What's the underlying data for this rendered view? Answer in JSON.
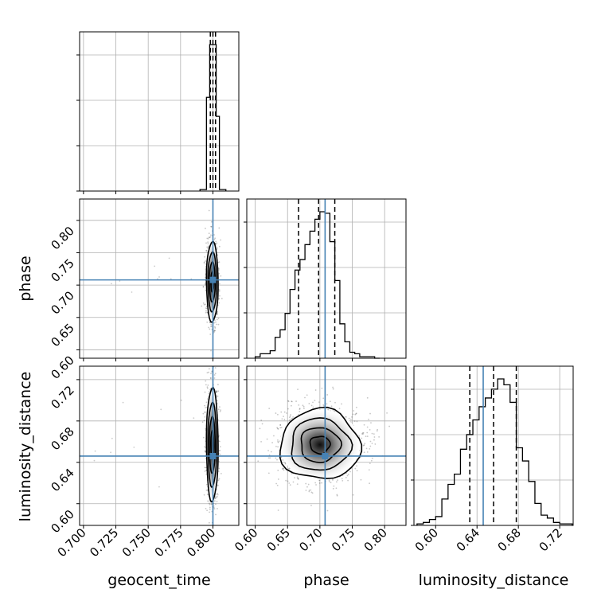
{
  "chart_data": {
    "type": "corner",
    "parameters": [
      "geocent_time",
      "phase",
      "luminosity_distance"
    ],
    "axis_labels": {
      "geocent_time": "geocent_time",
      "phase": "phase",
      "luminosity_distance": "luminosity_distance"
    },
    "truths": {
      "geocent_time": 0.8,
      "phase": 0.708,
      "luminosity_distance": 0.646
    },
    "ranges": {
      "geocent_time": [
        0.697,
        0.82
      ],
      "phase": [
        0.587,
        0.833
      ],
      "luminosity_distance": [
        0.579,
        0.733
      ]
    },
    "ticks": {
      "geocent_time": [
        0.7,
        0.725,
        0.75,
        0.775,
        0.8
      ],
      "phase": [
        0.6,
        0.65,
        0.7,
        0.75,
        0.8
      ],
      "luminosity_distance": [
        0.6,
        0.64,
        0.68,
        0.72
      ]
    },
    "tick_labels": {
      "geocent_time": [
        "0.700",
        "0.725",
        "0.750",
        "0.775",
        "0.800"
      ],
      "phase": [
        "0.60",
        "0.65",
        "0.70",
        "0.75",
        "0.80"
      ],
      "luminosity_distance": [
        "0.60",
        "0.64",
        "0.68",
        "0.72"
      ]
    },
    "quantiles": {
      "geocent_time": [
        0.798,
        0.8,
        0.802
      ],
      "phase": [
        0.667,
        0.698,
        0.723
      ],
      "luminosity_distance": [
        0.633,
        0.656,
        0.678
      ]
    },
    "histograms": {
      "geocent_time": {
        "edges": [
          0.79,
          0.795,
          0.7975,
          0.8,
          0.8025,
          0.805,
          0.81
        ],
        "counts": [
          1,
          64,
          100,
          100,
          51,
          1
        ]
      },
      "phase": {
        "edges": [
          0.6,
          0.6077,
          0.6154,
          0.6231,
          0.6308,
          0.6385,
          0.6462,
          0.6538,
          0.6615,
          0.6692,
          0.6769,
          0.6846,
          0.6923,
          0.7,
          0.7077,
          0.7154,
          0.7231,
          0.7308,
          0.7385,
          0.7462,
          0.7538,
          0.7615,
          0.7692,
          0.7769,
          0.7846,
          0.7923
        ],
        "counts": [
          1,
          3,
          3,
          5,
          14,
          19,
          30,
          46,
          59,
          66,
          76,
          85,
          93,
          98,
          97,
          78,
          52,
          23,
          11,
          4,
          3,
          1,
          1,
          1,
          0
        ]
      },
      "luminosity_distance": {
        "edges": [
          0.582,
          0.588,
          0.594,
          0.6,
          0.606,
          0.612,
          0.618,
          0.624,
          0.63,
          0.636,
          0.642,
          0.648,
          0.654,
          0.66,
          0.666,
          0.672,
          0.678,
          0.684,
          0.69,
          0.696,
          0.702,
          0.708,
          0.714,
          0.72,
          0.726,
          0.732
        ],
        "counts": [
          1,
          2,
          4,
          6,
          18,
          28,
          35,
          52,
          62,
          72,
          81,
          87,
          93,
          100,
          96,
          84,
          53,
          44,
          30,
          15,
          7,
          5,
          2,
          1,
          1
        ]
      }
    },
    "contour_levels": 4,
    "grid": true
  }
}
